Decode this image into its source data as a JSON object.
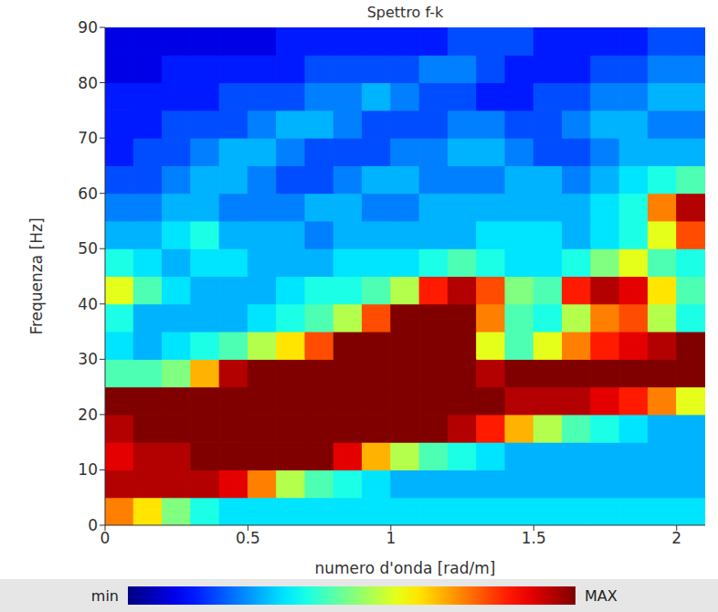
{
  "chart_data": {
    "type": "heatmap",
    "title": "Spettro f-k",
    "x_label": "numero d'onda [rad/m]",
    "y_label": "Frequenza [Hz]",
    "xlim": [
      0,
      2.1
    ],
    "xticks": [
      0,
      0.5,
      1,
      1.5,
      2
    ],
    "ylim": [
      0,
      90
    ],
    "yticks": [
      0,
      10,
      20,
      30,
      40,
      50,
      60,
      70,
      80,
      90
    ],
    "heatmap": {
      "x_edges": [
        0,
        0.1,
        0.2,
        0.3,
        0.4,
        0.5,
        0.6,
        0.7,
        0.8,
        0.9,
        1.0,
        1.1,
        1.2,
        1.3,
        1.4,
        1.5,
        1.6,
        1.7,
        1.8,
        1.9,
        2.0,
        2.1
      ],
      "y_edges": [
        0,
        5,
        10,
        15,
        20,
        25,
        30,
        35,
        40,
        45,
        50,
        55,
        60,
        65,
        70,
        75,
        80,
        85,
        90
      ],
      "cells": [
        [
          0.75,
          0.65,
          0.5,
          0.4,
          0.35,
          0.35,
          0.35,
          0.35,
          0.35,
          0.35,
          0.35,
          0.35,
          0.35,
          0.35,
          0.35,
          0.35,
          0.35,
          0.35,
          0.35,
          0.35,
          0.35
        ],
        [
          0.95,
          0.95,
          0.95,
          0.95,
          0.9,
          0.75,
          0.55,
          0.45,
          0.4,
          0.35,
          0.3,
          0.3,
          0.3,
          0.3,
          0.3,
          0.3,
          0.3,
          0.3,
          0.3,
          0.3,
          0.3
        ],
        [
          0.9,
          0.95,
          0.95,
          1,
          1,
          1,
          1,
          1,
          0.9,
          0.7,
          0.55,
          0.45,
          0.4,
          0.35,
          0.3,
          0.3,
          0.3,
          0.3,
          0.3,
          0.3,
          0.3
        ],
        [
          0.95,
          1,
          1,
          1,
          1,
          1,
          1,
          1,
          1,
          1,
          1,
          1,
          0.95,
          0.85,
          0.7,
          0.55,
          0.45,
          0.4,
          0.35,
          0.3,
          0.3
        ],
        [
          1,
          1,
          1,
          1,
          1,
          1,
          1,
          1,
          1,
          1,
          1,
          1,
          1,
          1,
          0.95,
          0.95,
          0.95,
          0.9,
          0.85,
          0.75,
          0.6
        ],
        [
          0.45,
          0.45,
          0.5,
          0.7,
          0.95,
          1,
          1,
          1,
          1,
          1,
          1,
          1,
          1,
          0.95,
          1,
          1,
          1,
          1,
          1,
          1,
          1
        ],
        [
          0.35,
          0.3,
          0.35,
          0.4,
          0.45,
          0.55,
          0.65,
          0.8,
          1,
          1,
          1,
          1,
          1,
          0.6,
          0.45,
          0.6,
          0.75,
          0.85,
          0.9,
          0.95,
          1
        ],
        [
          0.4,
          0.3,
          0.3,
          0.3,
          0.3,
          0.35,
          0.4,
          0.45,
          0.55,
          0.8,
          1,
          1,
          1,
          0.75,
          0.45,
          0.4,
          0.55,
          0.75,
          0.8,
          0.55,
          0.4
        ],
        [
          0.6,
          0.45,
          0.35,
          0.3,
          0.3,
          0.3,
          0.35,
          0.4,
          0.4,
          0.45,
          0.55,
          0.85,
          0.95,
          0.8,
          0.5,
          0.45,
          0.85,
          0.95,
          0.9,
          0.65,
          0.45
        ],
        [
          0.4,
          0.35,
          0.3,
          0.35,
          0.35,
          0.3,
          0.3,
          0.3,
          0.35,
          0.35,
          0.35,
          0.4,
          0.45,
          0.4,
          0.35,
          0.35,
          0.4,
          0.5,
          0.6,
          0.45,
          0.4
        ],
        [
          0.3,
          0.3,
          0.35,
          0.4,
          0.3,
          0.3,
          0.3,
          0.25,
          0.3,
          0.3,
          0.3,
          0.3,
          0.3,
          0.35,
          0.35,
          0.35,
          0.3,
          0.35,
          0.4,
          0.6,
          0.8
        ],
        [
          0.25,
          0.25,
          0.3,
          0.3,
          0.25,
          0.25,
          0.25,
          0.3,
          0.3,
          0.25,
          0.25,
          0.3,
          0.3,
          0.3,
          0.3,
          0.3,
          0.3,
          0.35,
          0.4,
          0.75,
          0.95
        ],
        [
          0.2,
          0.2,
          0.25,
          0.3,
          0.3,
          0.25,
          0.2,
          0.2,
          0.25,
          0.3,
          0.3,
          0.25,
          0.25,
          0.25,
          0.3,
          0.3,
          0.25,
          0.3,
          0.35,
          0.4,
          0.45
        ],
        [
          0.15,
          0.2,
          0.2,
          0.25,
          0.3,
          0.3,
          0.25,
          0.2,
          0.2,
          0.2,
          0.25,
          0.25,
          0.3,
          0.3,
          0.25,
          0.2,
          0.2,
          0.25,
          0.3,
          0.3,
          0.3
        ],
        [
          0.15,
          0.15,
          0.2,
          0.2,
          0.2,
          0.25,
          0.3,
          0.3,
          0.25,
          0.2,
          0.2,
          0.2,
          0.25,
          0.25,
          0.2,
          0.2,
          0.25,
          0.3,
          0.3,
          0.25,
          0.25
        ],
        [
          0.15,
          0.15,
          0.15,
          0.15,
          0.2,
          0.2,
          0.2,
          0.25,
          0.25,
          0.3,
          0.25,
          0.2,
          0.2,
          0.15,
          0.15,
          0.2,
          0.2,
          0.25,
          0.25,
          0.3,
          0.3
        ],
        [
          0.1,
          0.1,
          0.15,
          0.15,
          0.15,
          0.15,
          0.15,
          0.2,
          0.2,
          0.2,
          0.2,
          0.25,
          0.25,
          0.2,
          0.15,
          0.15,
          0.15,
          0.2,
          0.2,
          0.25,
          0.25
        ],
        [
          0.1,
          0.1,
          0.1,
          0.1,
          0.1,
          0.1,
          0.15,
          0.15,
          0.15,
          0.15,
          0.15,
          0.15,
          0.2,
          0.2,
          0.2,
          0.15,
          0.15,
          0.15,
          0.15,
          0.2,
          0.2
        ]
      ]
    },
    "colorbar": {
      "range": [
        0,
        1
      ],
      "ticks": [
        {
          "value": 0,
          "label": "min"
        },
        {
          "value": 1,
          "label": "MAX"
        }
      ]
    }
  }
}
